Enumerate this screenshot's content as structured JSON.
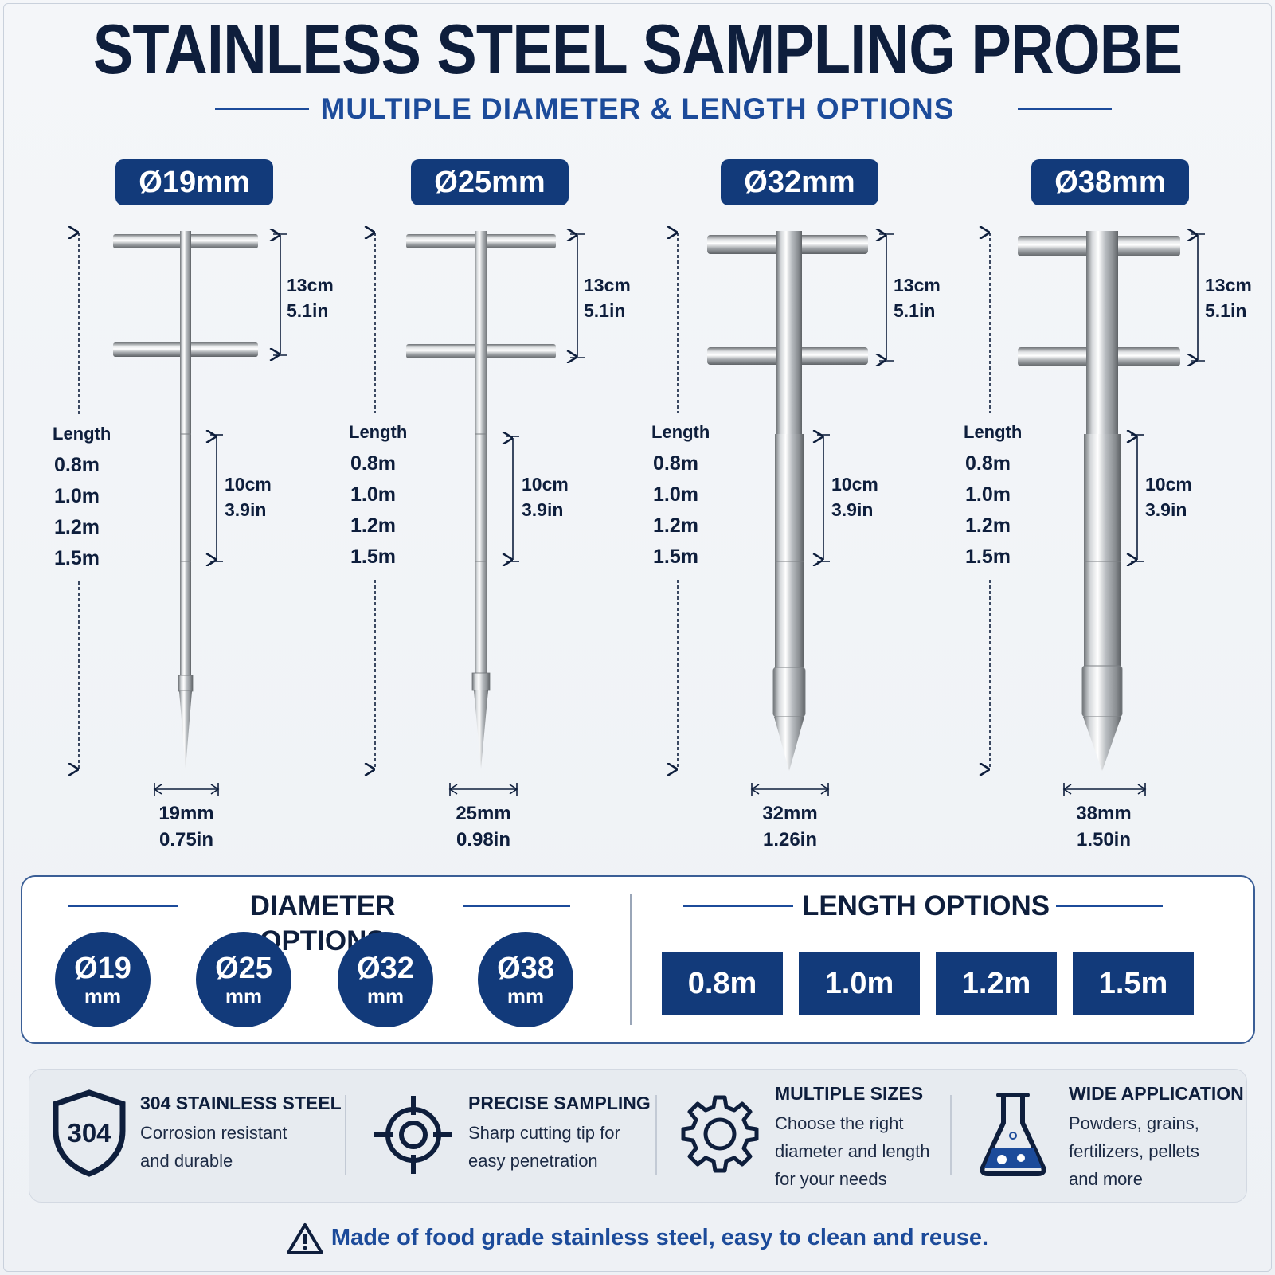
{
  "title": "STAINLESS STEEL SAMPLING PROBE",
  "subtitle": "MULTIPLE DIAMETER & LENGTH OPTIONS",
  "probes": [
    {
      "label": "Ø19mm",
      "length_title": "Length",
      "lengths": [
        "0.8m",
        "1.0m",
        "1.2m",
        "1.5m"
      ],
      "handle_cm": "13cm",
      "handle_in": "5.1in",
      "window_cm": "10cm",
      "window_in": "3.9in",
      "dia_mm": "19mm",
      "dia_in": "0.75in"
    },
    {
      "label": "Ø25mm",
      "length_title": "Length",
      "lengths": [
        "0.8m",
        "1.0m",
        "1.2m",
        "1.5m"
      ],
      "handle_cm": "13cm",
      "handle_in": "5.1in",
      "window_cm": "10cm",
      "window_in": "3.9in",
      "dia_mm": "25mm",
      "dia_in": "0.98in"
    },
    {
      "label": "Ø32mm",
      "length_title": "Length",
      "lengths": [
        "0.8m",
        "1.0m",
        "1.2m",
        "1.5m"
      ],
      "handle_cm": "13cm",
      "handle_in": "5.1in",
      "window_cm": "10cm",
      "window_in": "3.9in",
      "dia_mm": "32mm",
      "dia_in": "1.26in"
    },
    {
      "label": "Ø38mm",
      "length_title": "Length",
      "lengths": [
        "0.8m",
        "1.0m",
        "1.2m",
        "1.5m"
      ],
      "handle_cm": "13cm",
      "handle_in": "5.1in",
      "window_cm": "10cm",
      "window_in": "3.9in",
      "dia_mm": "38mm",
      "dia_in": "1.50in"
    }
  ],
  "diameter_options": {
    "heading": "DIAMETER OPTIONS",
    "items": [
      {
        "value": "Ø19",
        "unit": "mm"
      },
      {
        "value": "Ø25",
        "unit": "mm"
      },
      {
        "value": "Ø32",
        "unit": "mm"
      },
      {
        "value": "Ø38",
        "unit": "mm"
      }
    ]
  },
  "length_options": {
    "heading": "LENGTH OPTIONS",
    "items": [
      "0.8m",
      "1.0m",
      "1.2m",
      "1.5m"
    ]
  },
  "features": [
    {
      "icon": "shield-304-icon",
      "badge": "304",
      "title": "304 STAINLESS STEEL",
      "lines": [
        "Corrosion resistant",
        "and durable"
      ]
    },
    {
      "icon": "crosshair-icon",
      "title": "PRECISE SAMPLING",
      "lines": [
        "Sharp cutting tip for",
        "easy penetration"
      ]
    },
    {
      "icon": "gear-icon",
      "title": "MULTIPLE SIZES",
      "lines": [
        "Choose the right",
        "diameter and length",
        "for your needs"
      ]
    },
    {
      "icon": "flask-icon",
      "title": "WIDE APPLICATION",
      "lines": [
        "Powders, grains,",
        "fertilizers, pellets",
        "and more"
      ]
    }
  ],
  "footer": {
    "icon": "warning-icon",
    "text": "Made of food grade stainless steel, easy to clean and reuse."
  },
  "colors": {
    "navy": "#123a7a",
    "title": "#0e1e3c",
    "accent": "#1c4b9a"
  }
}
